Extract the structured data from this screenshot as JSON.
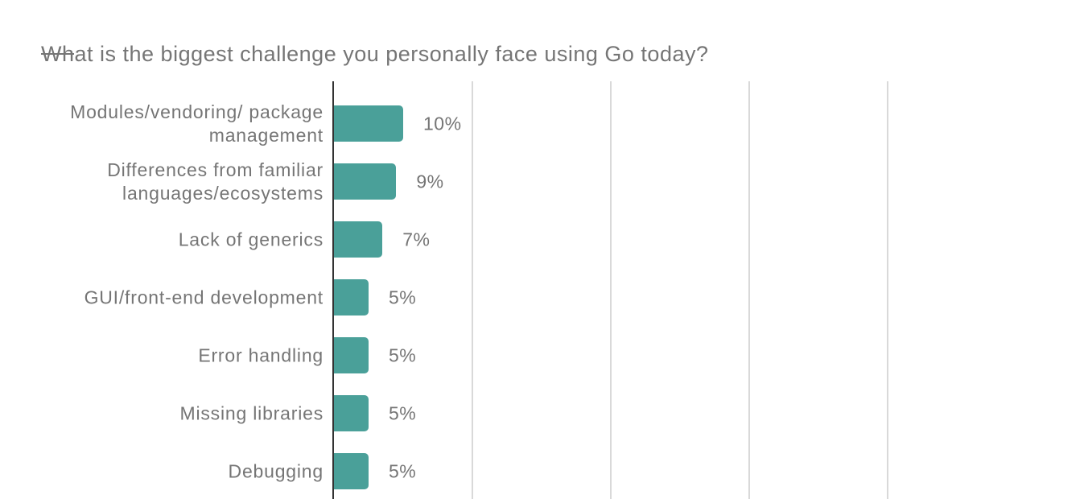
{
  "title": "What is the biggest challenge you personally face using Go today?",
  "colors": {
    "bar": "#4aa099",
    "axis": "#333333",
    "gridline": "#d9d9d9",
    "text": "#757575",
    "background": "#ffffff"
  },
  "chart_data": {
    "type": "bar",
    "orientation": "horizontal",
    "title": "What is the biggest challenge you personally face using Go today?",
    "xlabel": "",
    "ylabel": "",
    "categories": [
      "Modules/vendoring/ package management",
      "Differences from familiar languages/ecosystems",
      "Lack of generics",
      "GUI/front-end development",
      "Error handling",
      "Missing libraries",
      "Debugging"
    ],
    "values": [
      10,
      9,
      7,
      5,
      5,
      5,
      5
    ],
    "value_labels": [
      "10%",
      "9%",
      "7%",
      "5%",
      "5%",
      "5%",
      "5%"
    ],
    "xlim": [
      0,
      100
    ],
    "gridlines_percent": [
      20,
      40,
      60,
      80
    ],
    "grid": true,
    "legend": "none",
    "value_label_format": "percent"
  }
}
